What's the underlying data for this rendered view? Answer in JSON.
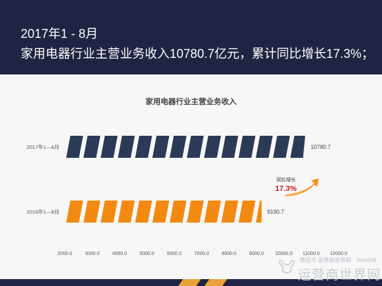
{
  "header": {
    "line1": "2017年1 - 8月",
    "line2": "家用电器行业主营业务收入10780.7亿元，累计同比增长17.3%；"
  },
  "growth": {
    "label": "同比增长",
    "value": "17.3%"
  },
  "watermark": {
    "small": "· 微信号 运营商世界网 - Telworld",
    "big": "运营商世界网"
  },
  "colors": {
    "header_bg": "#1f2442",
    "bar_2017": "#2b3a55",
    "bar_2016": "#f28a12",
    "growth_value": "#c0202a",
    "arrow": "#f28a12"
  },
  "chart_data": {
    "type": "bar",
    "orientation": "horizontal",
    "title": "家用电器行业主营业务收入",
    "categories": [
      "2017年1—8月",
      "2016年1—8月"
    ],
    "values": [
      10780.7,
      9190.7
    ],
    "value_labels": [
      "10780.7",
      "9190.7"
    ],
    "xlim": [
      2000,
      12000
    ],
    "x_ticks": [
      "2000.0",
      "3000.0",
      "4000.0",
      "5000.0",
      "6000.0",
      "7000.0",
      "8000.0",
      "9000.0",
      "10000.0",
      "11000.0",
      "12000.0"
    ],
    "grid": false,
    "legend": "none"
  }
}
